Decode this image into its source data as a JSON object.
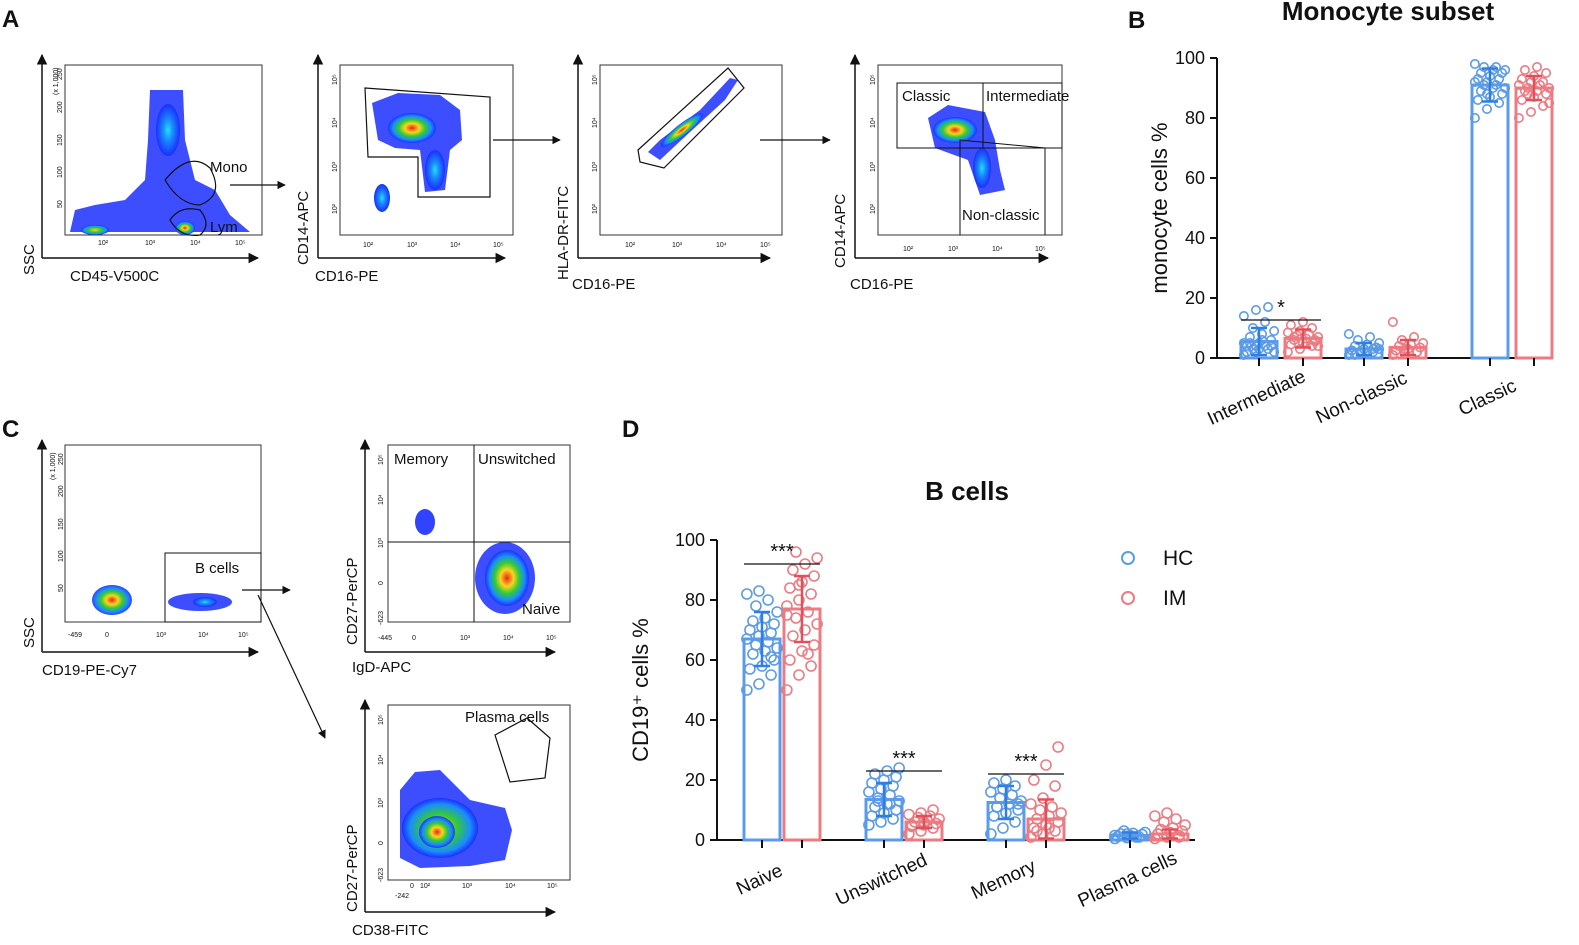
{
  "panel_labels": {
    "a": "A",
    "b": "B",
    "c": "C",
    "d": "D"
  },
  "colors": {
    "hc": "#5b9be8",
    "im": "#ec7b82",
    "dense": "#e8261b",
    "mid": "#33cc33",
    "sparse": "#1a2fff"
  },
  "legend": {
    "hc": "HC",
    "im": "IM"
  },
  "flow_a": {
    "p1": {
      "ylabel": "SSC",
      "xlabel": "CD45-V500C",
      "gates": [
        "Mono",
        "Lym"
      ],
      "yunit": "(x 1,000)",
      "yticks": [
        "250",
        "200",
        "150",
        "100",
        "50",
        "0"
      ],
      "xticks": [
        "10²",
        "10³",
        "10⁴",
        "10⁵"
      ]
    },
    "p2": {
      "ylabel": "CD14-APC",
      "xlabel": "CD16-PE",
      "yticks": [
        "10⁵",
        "10⁴",
        "10³",
        "10²"
      ],
      "xticks": [
        "10²",
        "10³",
        "10⁴",
        "10⁵"
      ]
    },
    "p3": {
      "ylabel": "HLA-DR-FITC",
      "xlabel": "CD16-PE",
      "yticks": [
        "10⁵",
        "10⁴",
        "10³",
        "10²"
      ],
      "xticks": [
        "10²",
        "10³",
        "10⁴",
        "10⁵"
      ]
    },
    "p4": {
      "ylabel": "CD14-APC",
      "xlabel": "CD16-PE",
      "gates": [
        "Classic",
        "Intermediate",
        "Non-classic"
      ],
      "yticks": [
        "10⁵",
        "10⁴",
        "10³",
        "10²"
      ],
      "xticks": [
        "10²",
        "10³",
        "10⁴",
        "10⁵"
      ]
    }
  },
  "flow_c": {
    "p1": {
      "ylabel": "SSC",
      "xlabel": "CD19-PE-Cy7",
      "gates": [
        "B cells"
      ],
      "yunit": "(x 1,000)",
      "yticks": [
        "250",
        "200",
        "150",
        "100",
        "50"
      ],
      "xticks": [
        "-459",
        "0",
        "10³",
        "10⁴",
        "10⁵"
      ]
    },
    "p2": {
      "ylabel": "CD27-PerCP",
      "xlabel": "IgD-APC",
      "gates": [
        "Memory",
        "Unswitched",
        "Naive"
      ],
      "yticks": [
        "10⁵",
        "10⁴",
        "10³",
        "0",
        "-623"
      ],
      "xticks": [
        "-445",
        "0",
        "10³",
        "10⁴",
        "10⁵"
      ]
    },
    "p3": {
      "ylabel": "CD27-PerCP",
      "xlabel": "CD38-FITC",
      "gates": [
        "Plasma cells"
      ],
      "yticks": [
        "10⁵",
        "10⁴",
        "10³",
        "0",
        "-623"
      ],
      "xticks": [
        "-242",
        "0",
        "10²",
        "10³",
        "10⁴",
        "10⁵"
      ]
    }
  },
  "chart_data": [
    {
      "type": "bar",
      "title": "Monocyte subset",
      "ylabel": "monocyte cells %",
      "xlabel": "",
      "ylim": [
        0,
        100
      ],
      "yticks": [
        0,
        20,
        40,
        60,
        80,
        100
      ],
      "categories": [
        "Intermediate",
        "Non-classic",
        "Classic"
      ],
      "series": [
        {
          "name": "HC",
          "values": [
            5.5,
            3,
            91
          ],
          "sd": [
            4.5,
            2,
            5.5
          ],
          "points": [
            [
              1,
              2,
              3,
              4,
              5,
              6,
              7,
              8,
              9,
              10,
              12,
              14,
              16,
              17,
              2,
              3,
              4,
              5,
              6,
              2,
              3,
              4,
              5,
              4
            ],
            [
              1,
              1.5,
              2,
              2.5,
              3,
              3.5,
              4,
              4.5,
              5,
              6,
              7,
              8,
              2,
              3,
              2.5,
              3,
              3.5,
              1,
              2,
              3
            ],
            [
              80,
              83,
              85,
              86,
              87,
              88,
              89,
              90,
              90,
              91,
              91,
              92,
              92,
              93,
              93,
              94,
              95,
              95,
              96,
              96,
              97,
              97,
              98,
              88
            ]
          ]
        },
        {
          "name": "IM",
          "values": [
            6.5,
            3.5,
            90
          ],
          "sd": [
            3,
            2.5,
            4
          ],
          "points": [
            [
              2,
              3,
              4,
              4.5,
              5,
              5.5,
              6,
              6.5,
              7,
              7.5,
              8,
              8.5,
              9,
              10,
              11,
              12,
              6,
              7,
              5,
              4
            ],
            [
              1,
              1.5,
              2,
              2.5,
              3,
              3.5,
              4,
              4.5,
              5,
              6,
              7,
              12,
              3,
              2,
              2.5,
              3
            ],
            [
              80,
              82,
              84,
              86,
              87,
              88,
              89,
              89,
              90,
              90,
              91,
              91,
              92,
              92,
              93,
              94,
              95,
              96,
              97,
              85,
              88
            ]
          ]
        }
      ],
      "significance": [
        {
          "category": "Intermediate",
          "label": "*"
        }
      ]
    },
    {
      "type": "bar",
      "title": "B cells",
      "ylabel": "CD19⁺ cells %",
      "xlabel": "",
      "ylim": [
        0,
        100
      ],
      "yticks": [
        0,
        20,
        40,
        60,
        80,
        100
      ],
      "categories": [
        "Naive",
        "Unswitched",
        "Memory",
        "Plasma cells"
      ],
      "series": [
        {
          "name": "HC",
          "values": [
            67,
            13.5,
            12.5,
            1.5
          ],
          "sd": [
            9,
            5.5,
            5.5,
            1
          ],
          "points": [
            [
              50,
              52,
              55,
              57,
              58,
              60,
              62,
              63,
              64,
              65,
              66,
              67,
              68,
              69,
              70,
              71,
              72,
              73,
              74,
              76,
              78,
              80,
              82,
              83,
              61
            ],
            [
              5,
              6,
              7,
              8,
              9,
              10,
              11,
              12,
              13,
              14,
              15,
              16,
              17,
              18,
              19,
              20,
              21,
              22,
              23,
              24,
              13,
              12
            ],
            [
              2,
              4,
              6,
              8,
              9,
              10,
              11,
              12,
              13,
              14,
              15,
              16,
              17,
              18,
              19,
              20,
              12,
              11
            ],
            [
              0.5,
              0.8,
              1,
              1.2,
              1.5,
              1.8,
              2,
              2.2,
              2.5,
              3,
              1,
              1.5,
              2
            ]
          ]
        },
        {
          "name": "IM",
          "values": [
            77,
            6,
            7,
            2
          ],
          "sd": [
            11,
            2,
            6.5,
            1.5
          ],
          "points": [
            [
              50,
              55,
              58,
              60,
              63,
              65,
              68,
              70,
              72,
              74,
              76,
              78,
              80,
              82,
              84,
              86,
              88,
              90,
              92,
              94,
              96,
              62,
              75,
              85
            ],
            [
              2,
              3,
              4,
              4.5,
              5,
              5.5,
              6,
              6.5,
              7,
              7.5,
              8,
              8.5,
              9,
              10,
              5,
              6
            ],
            [
              1,
              2,
              3,
              4,
              5,
              6,
              7,
              8,
              9,
              10,
              11,
              12,
              14,
              18,
              20,
              25,
              31,
              3,
              4
            ],
            [
              0.5,
              1,
              1.5,
              2,
              2.5,
              3,
              3.5,
              4,
              5,
              6,
              7,
              8,
              9,
              1,
              2
            ]
          ]
        }
      ],
      "significance": [
        {
          "category": "Naive",
          "label": "***"
        },
        {
          "category": "Unswitched",
          "label": "***"
        },
        {
          "category": "Memory",
          "label": "***"
        }
      ]
    }
  ]
}
